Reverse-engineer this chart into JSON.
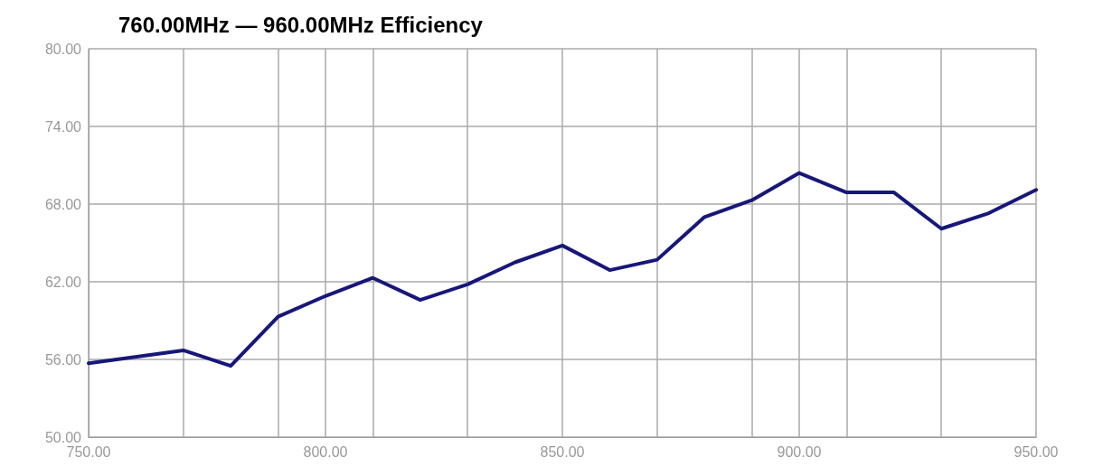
{
  "chart_data": {
    "type": "line",
    "title": "760.00MHz — 960.00MHz Efficiency",
    "x": [
      750,
      770,
      780,
      790,
      800,
      810,
      820,
      830,
      840,
      850,
      860,
      870,
      880,
      890,
      900,
      910,
      920,
      930,
      940,
      950
    ],
    "series": [
      {
        "color": "#17177a",
        "values": [
          55.7,
          56.7,
          55.5,
          59.3,
          60.9,
          62.3,
          60.6,
          61.8,
          63.5,
          64.8,
          62.9,
          63.7,
          67.0,
          68.3,
          70.4,
          68.9,
          68.9,
          66.1,
          67.3,
          69.1
        ]
      }
    ],
    "xlim": [
      750,
      950
    ],
    "xticks": [
      {
        "value": 750,
        "label": "750.00"
      },
      {
        "value": 770,
        "label": null
      },
      {
        "value": 790,
        "label": null
      },
      {
        "value": 800,
        "label": "800.00"
      },
      {
        "value": 810,
        "label": null
      },
      {
        "value": 830,
        "label": null
      },
      {
        "value": 850,
        "label": "850.00"
      },
      {
        "value": 870,
        "label": null
      },
      {
        "value": 890,
        "label": null
      },
      {
        "value": 900,
        "label": "900.00"
      },
      {
        "value": 910,
        "label": null
      },
      {
        "value": 930,
        "label": null
      },
      {
        "value": 950,
        "label": "950.00"
      }
    ],
    "ylim": [
      50,
      80
    ],
    "yticks": [
      {
        "value": 50,
        "label": "50.00"
      },
      {
        "value": 56,
        "label": "56.00"
      },
      {
        "value": 62,
        "label": "62.00"
      },
      {
        "value": 68,
        "label": "68.00"
      },
      {
        "value": 74,
        "label": "74.00"
      },
      {
        "value": 80,
        "label": "80.00"
      }
    ],
    "grid": true,
    "marker": "none",
    "line_style": "solid"
  }
}
